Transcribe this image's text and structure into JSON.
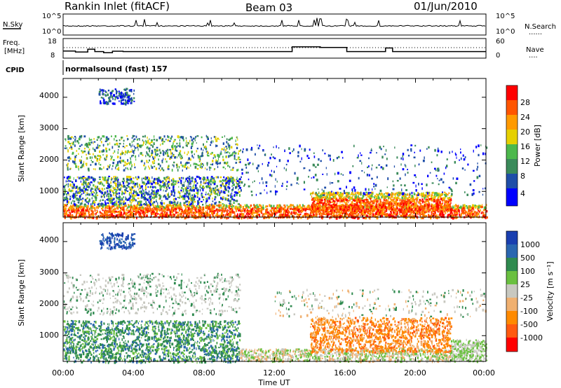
{
  "header": {
    "title": "Rankin Inlet (fitACF)",
    "beam": "Beam 03",
    "date": "01/Jun/2010"
  },
  "noise_panel": {
    "left_label": "N.Sky",
    "left_ticks": [
      "10^5",
      "10^0"
    ],
    "right_ticks": [
      "10^5",
      "10^0"
    ],
    "right_label": "N.Search",
    "right_legend": "......"
  },
  "freq_panel": {
    "left_label_1": "Freq.",
    "left_label_2": "[MHz]",
    "left_ticks": [
      "18",
      "8"
    ],
    "right_ticks": [
      "60",
      "0"
    ],
    "right_label": "Nave",
    "right_legend": "...."
  },
  "cpid": {
    "label": "CPID",
    "value": "normalsound (fast) 157"
  },
  "power_panel": {
    "ylabel": "Slant Range [km]",
    "y_ticks": [
      "4000",
      "3000",
      "2000",
      "1000"
    ],
    "colorbar_label": "Power [dB]",
    "colorbar_ticks": [
      "28",
      "24",
      "20",
      "16",
      "12",
      "8",
      "4"
    ]
  },
  "velocity_panel": {
    "ylabel": "Slant Range [km]",
    "y_ticks": [
      "4000",
      "3000",
      "2000",
      "1000"
    ],
    "colorbar_label": "Velocity [m s⁻¹]",
    "colorbar_ticks": [
      "1000",
      "500",
      "100",
      "25",
      "-25",
      "-100",
      "-500",
      "-1000"
    ]
  },
  "x_axis": {
    "ticks": [
      "00:00",
      "04:00",
      "08:00",
      "12:00",
      "16:00",
      "20:00",
      "00:00"
    ],
    "label": "Time UT"
  },
  "colors": {
    "power_scale": [
      "#0000ff",
      "#1f4ea8",
      "#3a8a5a",
      "#4cb84c",
      "#e6d000",
      "#ff9a00",
      "#ff5500",
      "#ff0000"
    ],
    "velocity_scale": [
      "#1a3fb0",
      "#2a66b0",
      "#2f8a4f",
      "#6ac040",
      "#c8c8c0",
      "#f0b070",
      "#ff8a00",
      "#ff5a10",
      "#ff0000"
    ]
  },
  "chart_data": [
    {
      "type": "line",
      "x_range_hours": [
        0,
        24
      ],
      "series": [
        {
          "values_description": "noise sky level, near-constant with small spikes"
        }
      ]
    },
    {
      "type": "line",
      "x_range_hours": [
        0,
        24
      ],
      "ylim": [
        8,
        18
      ],
      "series": [
        {
          "x": [
            0,
            0.7,
            1.4,
            1.8,
            2.3,
            2.8,
            3.4,
            12.0,
            13.0,
            14.3,
            14.6,
            16.1,
            18.3,
            18.7,
            24
          ],
          "values": [
            11.5,
            11.0,
            12.5,
            11.2,
            10.6,
            11.4,
            11.2,
            11.2,
            13.8,
            13.8,
            13.5,
            11.2,
            13.2,
            11.2,
            11.2
          ]
        }
      ]
    },
    {
      "type": "heatmap",
      "title": "",
      "ylabel": "Slant Range [km]",
      "ylim": [
        180,
        4600
      ],
      "x_range_hours": [
        0,
        24
      ],
      "colorbar": "Power [dB]",
      "clim": [
        0,
        30
      ]
    },
    {
      "type": "heatmap",
      "ylabel": "Slant Range [km]",
      "ylim": [
        180,
        4600
      ],
      "x_range_hours": [
        0,
        24
      ],
      "colorbar": "Velocity [m s⁻¹]",
      "clim": [
        -1000,
        1000
      ]
    }
  ]
}
